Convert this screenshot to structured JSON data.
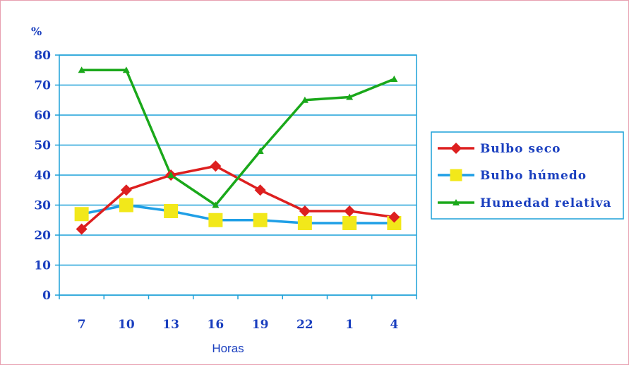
{
  "chart_data": {
    "type": "line",
    "ylabel": "%",
    "xlabel": "Horas",
    "categories": [
      "7",
      "10",
      "13",
      "16",
      "19",
      "22",
      "1",
      "4"
    ],
    "ylim": [
      0,
      80
    ],
    "yticks": [
      0,
      10,
      20,
      30,
      40,
      50,
      60,
      70,
      80
    ],
    "grid": true,
    "legend_position": "right",
    "series": [
      {
        "name": "Bulbo seco",
        "color": "#dd1f1f",
        "marker": "diamond",
        "values": [
          22,
          35,
          40,
          43,
          35,
          28,
          28,
          26
        ]
      },
      {
        "name": "Bulbo húmedo",
        "color": "#1f9fe6",
        "marker": "square",
        "marker_color": "#f2e81a",
        "values": [
          27,
          30,
          28,
          25,
          25,
          24,
          24,
          24
        ]
      },
      {
        "name": "Humedad relativa",
        "color": "#1aa81a",
        "marker": "triangle",
        "values": [
          75,
          75,
          40,
          30,
          48,
          65,
          66,
          72
        ]
      }
    ]
  },
  "colors": {
    "axis": "#1ca0d8",
    "grid": "#1ca0d8",
    "text": "#1a3fbf"
  }
}
